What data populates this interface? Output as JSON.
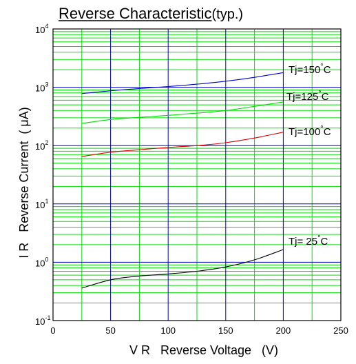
{
  "chart_data": {
    "type": "line",
    "title_underlined": "Reverse Characteristic",
    "title_suffix": "(typ.)",
    "xlabel": "V R   Reverse Voltage   (V)",
    "ylabel": "I R   Reverse Current  ( μA)",
    "xlim": [
      0,
      250
    ],
    "ylim": [
      0.1,
      10000
    ],
    "yscale": "log",
    "x_ticks": [
      0,
      50,
      100,
      150,
      200,
      250
    ],
    "x_tick_labels": [
      "0",
      "50",
      "100",
      "150",
      "200",
      "250"
    ],
    "y_ticks": [
      {
        "value": 0.1,
        "base": "10",
        "exp": "-1"
      },
      {
        "value": 1,
        "base": "10",
        "exp": "0"
      },
      {
        "value": 10,
        "base": "10",
        "exp": "1"
      },
      {
        "value": 100,
        "base": "10",
        "exp": "2"
      },
      {
        "value": 1000,
        "base": "10",
        "exp": "3"
      },
      {
        "value": 10000,
        "base": "10",
        "exp": "4"
      }
    ],
    "grid": true,
    "colors": {
      "minor_grid": "#00e000",
      "major_grid": "#0000c0",
      "frame": "#000000"
    },
    "series": [
      {
        "name": "Tj=150",
        "unit": "°C",
        "color": "#0000cc",
        "x": [
          25,
          50,
          75,
          100,
          125,
          150,
          175,
          200
        ],
        "y": [
          780,
          870,
          950,
          1030,
          1130,
          1270,
          1480,
          1780
        ]
      },
      {
        "name": "Tj=125",
        "unit": "°C",
        "color": "#00dd00",
        "x": [
          25,
          50,
          75,
          100,
          125,
          150,
          175,
          200
        ],
        "y": [
          240,
          280,
          305,
          330,
          360,
          400,
          470,
          560
        ]
      },
      {
        "name": "Tj=100",
        "unit": "°C",
        "color": "#e00000",
        "x": [
          25,
          50,
          75,
          100,
          125,
          150,
          175,
          200
        ],
        "y": [
          65,
          77,
          85,
          93,
          100,
          112,
          135,
          170
        ]
      },
      {
        "name": "Tj= 25",
        "unit": "°C",
        "color": "#000000",
        "x": [
          25,
          50,
          75,
          100,
          125,
          150,
          175,
          200
        ],
        "y": [
          0.36,
          0.5,
          0.58,
          0.63,
          0.7,
          0.83,
          1.1,
          1.65
        ]
      }
    ]
  }
}
